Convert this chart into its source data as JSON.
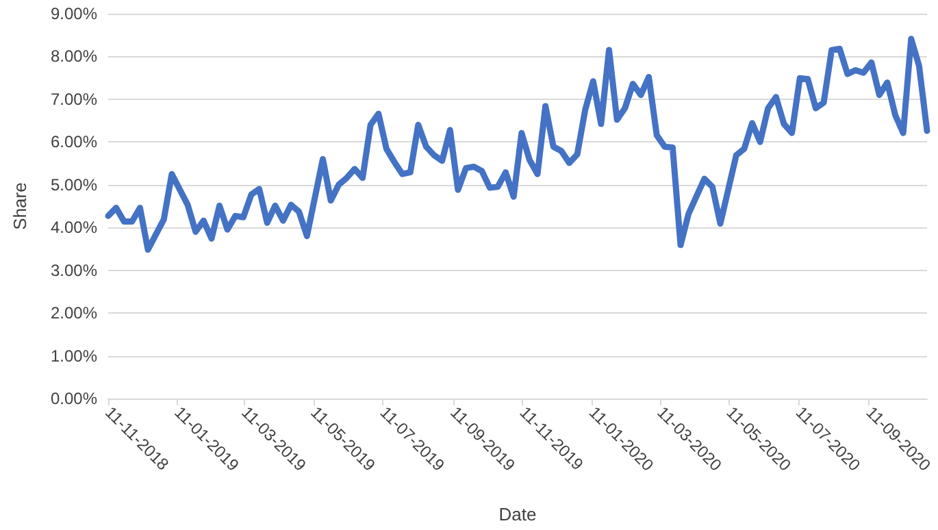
{
  "chart_data": {
    "type": "line",
    "xlabel": "Date",
    "ylabel": "Share",
    "x": [
      "2018-11-11",
      "2018-11-18",
      "2018-11-25",
      "2018-12-02",
      "2018-12-09",
      "2018-12-16",
      "2018-12-30",
      "2019-01-06",
      "2019-01-20",
      "2019-01-27",
      "2019-02-03",
      "2019-02-10",
      "2019-02-17",
      "2019-02-24",
      "2019-03-03",
      "2019-03-10",
      "2019-03-17",
      "2019-03-24",
      "2019-03-31",
      "2019-04-07",
      "2019-04-14",
      "2019-04-21",
      "2019-04-28",
      "2019-05-05",
      "2019-05-19",
      "2019-05-26",
      "2019-06-02",
      "2019-06-09",
      "2019-06-16",
      "2019-06-23",
      "2019-06-30",
      "2019-07-07",
      "2019-07-14",
      "2019-07-21",
      "2019-07-28",
      "2019-08-04",
      "2019-08-11",
      "2019-08-18",
      "2019-08-25",
      "2019-09-01",
      "2019-09-08",
      "2019-09-15",
      "2019-09-22",
      "2019-09-29",
      "2019-10-06",
      "2019-10-13",
      "2019-10-20",
      "2019-10-27",
      "2019-11-03",
      "2019-11-10",
      "2019-11-17",
      "2019-11-24",
      "2019-12-01",
      "2019-12-08",
      "2019-12-15",
      "2019-12-22",
      "2019-12-29",
      "2020-01-05",
      "2020-01-12",
      "2020-01-19",
      "2020-01-26",
      "2020-02-02",
      "2020-02-09",
      "2020-02-16",
      "2020-02-23",
      "2020-03-01",
      "2020-03-08",
      "2020-03-15",
      "2020-03-22",
      "2020-03-29",
      "2020-04-05",
      "2020-04-19",
      "2020-04-26",
      "2020-05-03",
      "2020-05-17",
      "2020-05-24",
      "2020-05-31",
      "2020-06-07",
      "2020-06-14",
      "2020-06-21",
      "2020-06-28",
      "2020-07-05",
      "2020-07-12",
      "2020-07-19",
      "2020-07-26",
      "2020-08-02",
      "2020-08-09",
      "2020-08-16",
      "2020-08-23",
      "2020-08-30",
      "2020-09-06",
      "2020-09-13",
      "2020-09-20",
      "2020-09-27",
      "2020-10-04",
      "2020-10-11",
      "2020-10-18",
      "2020-10-25",
      "2020-11-01"
    ],
    "series": [
      {
        "color": "#4472c4",
        "values": [
          4.27,
          4.46,
          4.14,
          4.14,
          4.46,
          3.48,
          4.19,
          5.25,
          4.53,
          3.9,
          4.16,
          3.74,
          4.51,
          3.95,
          4.27,
          4.24,
          4.77,
          4.9,
          4.11,
          4.51,
          4.16,
          4.53,
          4.37,
          3.8,
          5.6,
          4.63,
          5.0,
          5.16,
          5.37,
          5.16,
          6.4,
          6.66,
          5.84,
          5.53,
          5.25,
          5.29,
          6.4,
          5.89,
          5.69,
          5.56,
          6.28,
          4.88,
          5.39,
          5.42,
          5.32,
          4.93,
          4.95,
          5.29,
          4.72,
          6.21,
          5.58,
          5.25,
          6.84,
          5.89,
          5.79,
          5.51,
          5.71,
          6.75,
          7.42,
          6.42,
          8.15,
          6.52,
          6.79,
          7.36,
          7.1,
          7.52,
          6.16,
          5.89,
          5.87,
          3.59,
          4.32,
          5.14,
          4.95,
          4.09,
          5.69,
          5.84,
          6.44,
          6.0,
          6.79,
          7.05,
          6.42,
          6.21,
          7.49,
          7.47,
          6.79,
          6.92,
          8.15,
          8.18,
          7.59,
          7.68,
          7.62,
          7.86,
          7.1,
          7.39,
          6.63,
          6.21,
          8.41,
          7.78,
          6.26
        ]
      }
    ],
    "xlim": [
      "2018-11-11",
      "2020-11-01"
    ],
    "xticks": [
      {
        "value": "2018-11-11",
        "label": "11-11-2018"
      },
      {
        "value": "2019-01-11",
        "label": "11-01-2019"
      },
      {
        "value": "2019-03-11",
        "label": "11-03-2019"
      },
      {
        "value": "2019-05-11",
        "label": "11-05-2019"
      },
      {
        "value": "2019-07-11",
        "label": "11-07-2019"
      },
      {
        "value": "2019-09-11",
        "label": "11-09-2019"
      },
      {
        "value": "2019-11-11",
        "label": "11-11-2019"
      },
      {
        "value": "2020-01-11",
        "label": "11-01-2020"
      },
      {
        "value": "2020-03-11",
        "label": "11-03-2020"
      },
      {
        "value": "2020-05-11",
        "label": "11-05-2020"
      },
      {
        "value": "2020-07-11",
        "label": "11-07-2020"
      },
      {
        "value": "2020-09-11",
        "label": "11-09-2020"
      }
    ],
    "ylim": [
      0,
      9
    ],
    "yticks": [
      {
        "value": 0,
        "label": "0.00%"
      },
      {
        "value": 1,
        "label": "1.00%"
      },
      {
        "value": 2,
        "label": "2.00%"
      },
      {
        "value": 3,
        "label": "3.00%"
      },
      {
        "value": 4,
        "label": "4.00%"
      },
      {
        "value": 5,
        "label": "5.00%"
      },
      {
        "value": 6,
        "label": "6.00%"
      },
      {
        "value": 7,
        "label": "7.00%"
      },
      {
        "value": 8,
        "label": "8.00%"
      },
      {
        "value": 9,
        "label": "9.00%"
      }
    ],
    "grid": "y",
    "marker": "none",
    "line_style": "solid"
  }
}
